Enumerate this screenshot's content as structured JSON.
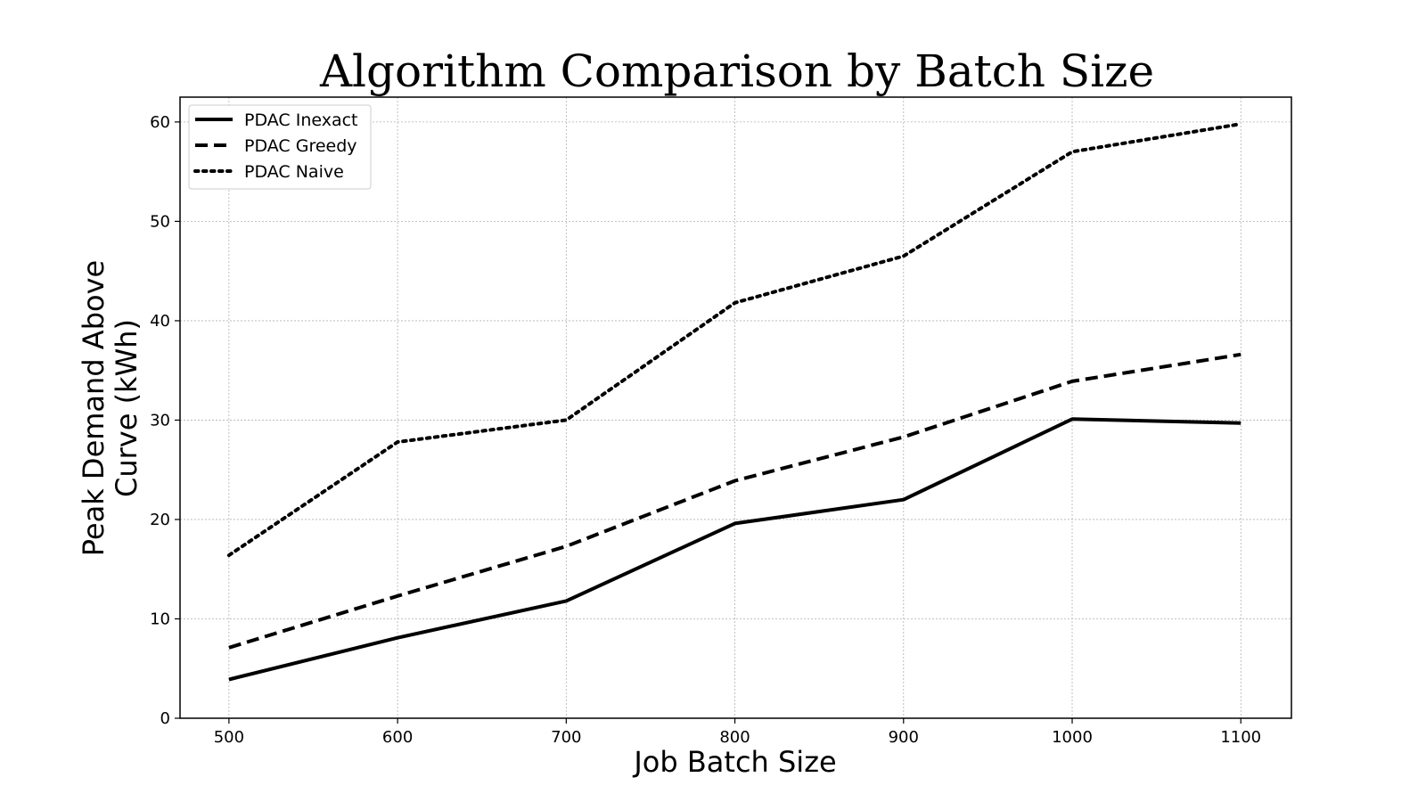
{
  "chart_data": {
    "type": "line",
    "title": "Algorithm Comparison by Batch Size",
    "xlabel": "Job Batch Size",
    "ylabel_lines": [
      "Peak Demand Above",
      "Curve (kWh)"
    ],
    "x": [
      500,
      600,
      700,
      800,
      900,
      1000,
      1100
    ],
    "xlim": [
      471,
      1130
    ],
    "ylim": [
      0,
      62.5
    ],
    "xticks": [
      500,
      600,
      700,
      800,
      900,
      1000,
      1100
    ],
    "yticks": [
      0,
      10,
      20,
      30,
      40,
      50,
      60
    ],
    "grid": true,
    "legend_position": "top-left",
    "series": [
      {
        "name": "PDAC Inexact",
        "style": "solid",
        "color": "#000000",
        "values": [
          3.9,
          8.1,
          11.8,
          19.6,
          22.0,
          30.1,
          29.7
        ]
      },
      {
        "name": "PDAC Greedy",
        "style": "dashed",
        "color": "#000000",
        "values": [
          7.1,
          12.3,
          17.3,
          23.9,
          28.3,
          33.9,
          36.6
        ]
      },
      {
        "name": "PDAC Naive",
        "style": "dotted",
        "color": "#000000",
        "values": [
          16.4,
          27.8,
          30.0,
          41.8,
          46.5,
          57.0,
          59.8
        ]
      }
    ]
  }
}
